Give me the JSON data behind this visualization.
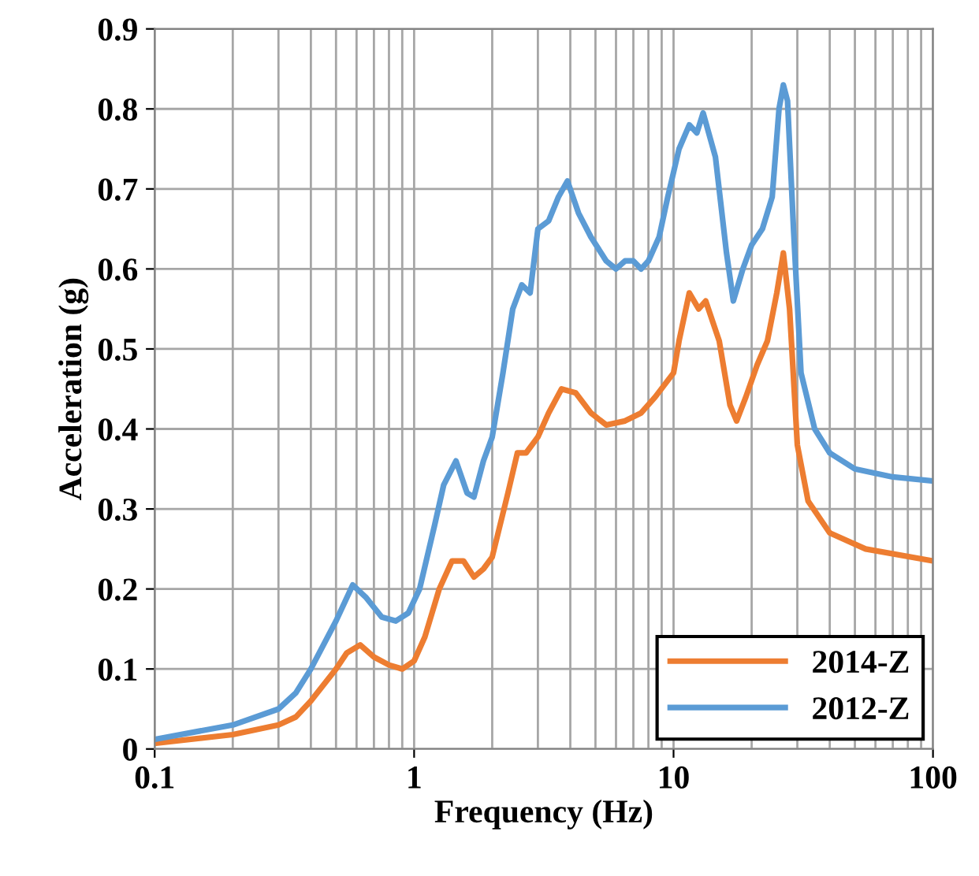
{
  "chart_data": {
    "type": "line",
    "xlabel": "Frequency (Hz)",
    "ylabel": "Acceleration (g)",
    "log": "x",
    "xlim": [
      0.1,
      100
    ],
    "xticks": [
      0.1,
      1,
      10,
      100
    ],
    "ylim": [
      0,
      0.9
    ],
    "yticks": [
      0,
      0.1,
      0.2,
      0.3,
      0.4,
      0.5,
      0.6,
      0.7,
      0.8,
      0.9
    ],
    "grid": true,
    "legend": "bottom right",
    "marker": "none",
    "line_style": "solid",
    "series": [
      {
        "name": "2014-Z",
        "color": "#ed7d31",
        "x": [
          0.1,
          0.2,
          0.3,
          0.35,
          0.4,
          0.5,
          0.55,
          0.62,
          0.7,
          0.8,
          0.9,
          1.0,
          1.1,
          1.25,
          1.4,
          1.55,
          1.7,
          1.85,
          2.0,
          2.3,
          2.5,
          2.7,
          3.0,
          3.3,
          3.7,
          4.2,
          4.8,
          5.5,
          6.5,
          7.5,
          8.5,
          10,
          10.5,
          11.5,
          12.5,
          13.3,
          15,
          16.5,
          17.5,
          19,
          21,
          23,
          25,
          26.5,
          28,
          30,
          33,
          40,
          55,
          100
        ],
        "values": [
          0.007,
          0.018,
          0.03,
          0.04,
          0.06,
          0.1,
          0.12,
          0.13,
          0.115,
          0.105,
          0.1,
          0.11,
          0.14,
          0.2,
          0.235,
          0.235,
          0.215,
          0.225,
          0.24,
          0.32,
          0.37,
          0.37,
          0.39,
          0.42,
          0.45,
          0.445,
          0.42,
          0.405,
          0.41,
          0.42,
          0.44,
          0.47,
          0.51,
          0.57,
          0.55,
          0.56,
          0.51,
          0.43,
          0.41,
          0.44,
          0.48,
          0.51,
          0.57,
          0.62,
          0.55,
          0.38,
          0.31,
          0.27,
          0.25,
          0.235
        ]
      },
      {
        "name": "2012-Z",
        "color": "#5b9bd5",
        "x": [
          0.1,
          0.2,
          0.3,
          0.35,
          0.4,
          0.5,
          0.58,
          0.65,
          0.75,
          0.85,
          0.95,
          1.05,
          1.2,
          1.3,
          1.45,
          1.6,
          1.7,
          1.85,
          2.0,
          2.2,
          2.4,
          2.6,
          2.8,
          3.0,
          3.3,
          3.6,
          3.9,
          4.3,
          4.8,
          5.5,
          6.0,
          6.5,
          7.0,
          7.5,
          8.0,
          8.8,
          9.5,
          10.5,
          11.5,
          12.3,
          13,
          14.5,
          16,
          17,
          18.5,
          20,
          22,
          24,
          25.5,
          26.5,
          27.5,
          29,
          31,
          35,
          40,
          50,
          70,
          100
        ],
        "values": [
          0.012,
          0.03,
          0.05,
          0.07,
          0.1,
          0.16,
          0.205,
          0.19,
          0.165,
          0.16,
          0.17,
          0.2,
          0.28,
          0.33,
          0.36,
          0.32,
          0.315,
          0.36,
          0.39,
          0.47,
          0.55,
          0.58,
          0.57,
          0.65,
          0.66,
          0.69,
          0.71,
          0.67,
          0.64,
          0.61,
          0.6,
          0.61,
          0.61,
          0.6,
          0.61,
          0.64,
          0.69,
          0.75,
          0.78,
          0.77,
          0.795,
          0.74,
          0.62,
          0.56,
          0.6,
          0.63,
          0.65,
          0.69,
          0.8,
          0.83,
          0.81,
          0.65,
          0.47,
          0.4,
          0.37,
          0.35,
          0.34,
          0.335
        ]
      }
    ]
  }
}
